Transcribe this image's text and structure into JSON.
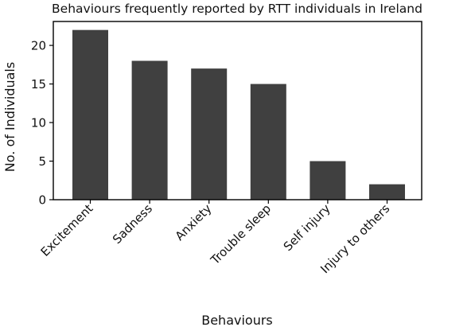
{
  "chart_data": {
    "type": "bar",
    "title": "Behaviours frequently reported by RTT individuals in Ireland",
    "xlabel": "Behaviours",
    "ylabel": "No. of Individuals",
    "categories": [
      "Excitement",
      "Sadness",
      "Anxiety",
      "Trouble sleep",
      "Self injury",
      "Injury to others"
    ],
    "values": [
      22,
      18,
      17,
      15,
      5,
      2
    ],
    "ylim": [
      0,
      23.1
    ],
    "yticks": [
      0,
      5,
      10,
      15,
      20
    ],
    "bar_color": "#404040",
    "grid": false,
    "legend": "none"
  }
}
